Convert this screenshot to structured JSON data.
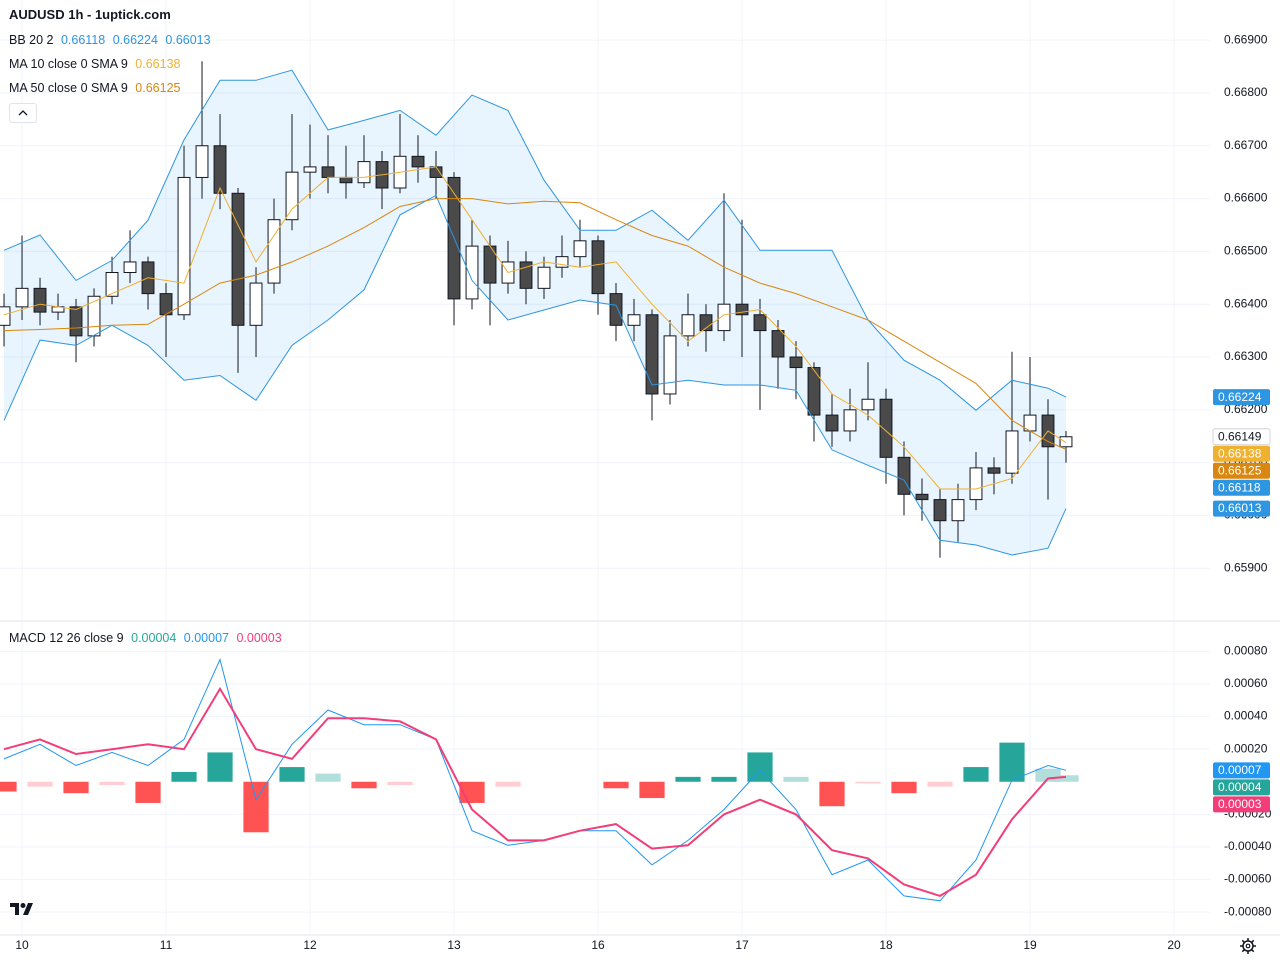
{
  "chart_data": [
    {
      "type": "candlestick",
      "title": "AUDUSD 1h - 1uptick.com",
      "xlim": [
        -3.67,
        198
      ],
      "xticks": [
        {
          "value": 0,
          "label": "10"
        },
        {
          "value": 24,
          "label": "11"
        },
        {
          "value": 48,
          "label": "12"
        },
        {
          "value": 72,
          "label": "13"
        },
        {
          "value": 96,
          "label": "16"
        },
        {
          "value": 120,
          "label": "17"
        },
        {
          "value": 144,
          "label": "18"
        },
        {
          "value": 168,
          "label": "19"
        },
        {
          "value": 192,
          "label": "20"
        }
      ],
      "ylim": [
        0.65802,
        0.66976
      ],
      "yticks": [
        {
          "value": 0.659,
          "label": "0.65900"
        },
        {
          "value": 0.66,
          "label": "0.66000"
        },
        {
          "value": 0.661,
          "label": "0.66100"
        },
        {
          "value": 0.662,
          "label": "0.66200"
        },
        {
          "value": 0.663,
          "label": "0.66300"
        },
        {
          "value": 0.664,
          "label": "0.66400"
        },
        {
          "value": 0.665,
          "label": "0.66500"
        },
        {
          "value": 0.666,
          "label": "0.66600"
        },
        {
          "value": 0.667,
          "label": "0.66700"
        },
        {
          "value": 0.668,
          "label": "0.66800"
        },
        {
          "value": 0.669,
          "label": "0.66900"
        }
      ],
      "grid": true,
      "up_color": "#ffffff",
      "down_color": "#4a4a4a",
      "wick_color": "#131722",
      "candles": [
        [
          -3,
          0.6636,
          0.6642,
          0.6632,
          0.66395
        ],
        [
          0,
          0.66395,
          0.6653,
          0.6637,
          0.6643
        ],
        [
          3,
          0.6643,
          0.6645,
          0.6636,
          0.66385
        ],
        [
          6,
          0.66385,
          0.6642,
          0.6637,
          0.66395
        ],
        [
          9,
          0.66395,
          0.6641,
          0.6629,
          0.6634
        ],
        [
          12,
          0.6634,
          0.6643,
          0.6632,
          0.66415
        ],
        [
          15,
          0.66415,
          0.6649,
          0.664,
          0.6646
        ],
        [
          18,
          0.6646,
          0.6654,
          0.6644,
          0.6648
        ],
        [
          21,
          0.6648,
          0.6649,
          0.6639,
          0.6642
        ],
        [
          24,
          0.6642,
          0.6644,
          0.663,
          0.6638
        ],
        [
          27,
          0.6638,
          0.667,
          0.6637,
          0.6664
        ],
        [
          30,
          0.6664,
          0.6686,
          0.666,
          0.667
        ],
        [
          33,
          0.667,
          0.6676,
          0.6658,
          0.6661
        ],
        [
          36,
          0.6661,
          0.6662,
          0.6627,
          0.6636
        ],
        [
          39,
          0.6636,
          0.6647,
          0.663,
          0.6644
        ],
        [
          42,
          0.6644,
          0.666,
          0.6642,
          0.6656
        ],
        [
          45,
          0.6656,
          0.6676,
          0.6654,
          0.6665
        ],
        [
          48,
          0.6665,
          0.6674,
          0.666,
          0.6666
        ],
        [
          51,
          0.6666,
          0.6672,
          0.6661,
          0.6664
        ],
        [
          54,
          0.6664,
          0.667,
          0.666,
          0.6663
        ],
        [
          57,
          0.6663,
          0.6672,
          0.6662,
          0.6667
        ],
        [
          60,
          0.6667,
          0.6669,
          0.6658,
          0.6662
        ],
        [
          63,
          0.6662,
          0.6676,
          0.6661,
          0.6668
        ],
        [
          66,
          0.6668,
          0.6672,
          0.6663,
          0.6666
        ],
        [
          69,
          0.6666,
          0.6669,
          0.666,
          0.6664
        ],
        [
          72,
          0.6664,
          0.6665,
          0.6636,
          0.6641
        ],
        [
          75,
          0.6641,
          0.6656,
          0.6639,
          0.6651
        ],
        [
          78,
          0.6651,
          0.6653,
          0.6636,
          0.6644
        ],
        [
          81,
          0.6644,
          0.6652,
          0.6642,
          0.6648
        ],
        [
          84,
          0.6648,
          0.665,
          0.664,
          0.6643
        ],
        [
          87,
          0.6643,
          0.6649,
          0.6641,
          0.6647
        ],
        [
          90,
          0.6647,
          0.6653,
          0.6645,
          0.6649
        ],
        [
          93,
          0.6649,
          0.6656,
          0.6647,
          0.6652
        ],
        [
          96,
          0.6652,
          0.6653,
          0.6638,
          0.6642
        ],
        [
          99,
          0.6642,
          0.6644,
          0.6633,
          0.6636
        ],
        [
          102,
          0.6636,
          0.6641,
          0.6633,
          0.6638
        ],
        [
          105,
          0.6638,
          0.6639,
          0.6618,
          0.6623
        ],
        [
          108,
          0.6623,
          0.6637,
          0.6621,
          0.6634
        ],
        [
          111,
          0.6634,
          0.6642,
          0.6632,
          0.6638
        ],
        [
          114,
          0.6638,
          0.664,
          0.6631,
          0.6635
        ],
        [
          117,
          0.6635,
          0.6661,
          0.6633,
          0.664
        ],
        [
          120,
          0.664,
          0.6656,
          0.663,
          0.6638
        ],
        [
          123,
          0.6638,
          0.6641,
          0.662,
          0.6635
        ],
        [
          126,
          0.6635,
          0.6637,
          0.6624,
          0.663
        ],
        [
          129,
          0.663,
          0.6633,
          0.6622,
          0.6628
        ],
        [
          132,
          0.6628,
          0.6629,
          0.6614,
          0.6619
        ],
        [
          135,
          0.6619,
          0.6623,
          0.6613,
          0.6616
        ],
        [
          138,
          0.6616,
          0.6624,
          0.6614,
          0.662
        ],
        [
          141,
          0.662,
          0.6629,
          0.6618,
          0.6622
        ],
        [
          144,
          0.6622,
          0.6624,
          0.6606,
          0.6611
        ],
        [
          147,
          0.6611,
          0.6614,
          0.66,
          0.6604
        ],
        [
          150,
          0.6604,
          0.6607,
          0.6599,
          0.6603
        ],
        [
          153,
          0.6603,
          0.6605,
          0.6592,
          0.6599
        ],
        [
          156,
          0.6599,
          0.6606,
          0.6595,
          0.6603
        ],
        [
          159,
          0.6603,
          0.6612,
          0.6601,
          0.6609
        ],
        [
          162,
          0.6609,
          0.6611,
          0.6604,
          0.6608
        ],
        [
          165,
          0.6608,
          0.6631,
          0.6606,
          0.6616
        ],
        [
          168,
          0.6616,
          0.663,
          0.6614,
          0.6619
        ],
        [
          171,
          0.6619,
          0.6622,
          0.6603,
          0.6613
        ],
        [
          174,
          0.6613,
          0.6616,
          0.661,
          0.66149
        ]
      ],
      "x": [
        -3,
        3,
        9,
        15,
        21,
        27,
        33,
        39,
        45,
        51,
        57,
        63,
        69,
        75,
        81,
        87,
        93,
        99,
        105,
        111,
        117,
        123,
        129,
        135,
        141,
        147,
        153,
        159,
        165,
        171,
        174
      ],
      "indicators": [
        {
          "label": "BB 20 2",
          "color": "#2e95e0",
          "fill": "rgba(33,150,243,0.10)",
          "lines": [
            {
              "values": [
                0.66341,
                0.66432,
                0.66384,
                0.66422,
                0.66441,
                0.66484,
                0.66545,
                0.66521,
                0.66583,
                0.6655,
                0.66588,
                0.66668,
                0.66663,
                0.66621,
                0.66569,
                0.66512,
                0.66474,
                0.66469,
                0.66413,
                0.66389,
                0.66422,
                0.66375,
                0.6637,
                0.66313,
                0.66233,
                0.66181,
                0.66105,
                0.66072,
                0.66091,
                0.6609,
                0.66118
              ],
              "visible": false
            },
            {
              "values": [
                0.66502,
                0.66531,
                0.66445,
                0.66483,
                0.66559,
                0.66711,
                0.66824,
                0.66824,
                0.66843,
                0.6673,
                0.66748,
                0.66767,
                0.6672,
                0.66796,
                0.66767,
                0.66635,
                0.6654,
                0.6654,
                0.66578,
                0.66521,
                0.66597,
                0.66502,
                0.66502,
                0.66502,
                0.6637,
                0.66294,
                0.66256,
                0.66199,
                0.66256,
                0.66241,
                0.66224
              ],
              "visible": true
            },
            {
              "values": [
                0.6618,
                0.66332,
                0.66322,
                0.6636,
                0.66322,
                0.66256,
                0.66265,
                0.66218,
                0.66322,
                0.6637,
                0.66427,
                0.66569,
                0.66606,
                0.66445,
                0.6637,
                0.66389,
                0.66408,
                0.66398,
                0.66247,
                0.66256,
                0.66247,
                0.66247,
                0.66237,
                0.66124,
                0.66095,
                0.66067,
                0.65953,
                0.65944,
                0.65925,
                0.65938,
                0.66013
              ],
              "visible": true
            }
          ]
        },
        {
          "label": "MA 10 close 0 SMA 9",
          "color": "#f0b030",
          "lines": [
            {
              "values": [
                0.6638,
                0.664,
                0.6639,
                0.6642,
                0.6645,
                0.6644,
                0.6662,
                0.6648,
                0.6658,
                0.6664,
                0.6664,
                0.6665,
                0.6666,
                0.6656,
                0.6646,
                0.6648,
                0.6647,
                0.6648,
                0.664,
                0.6633,
                0.6638,
                0.6639,
                0.6632,
                0.6623,
                0.6619,
                0.6613,
                0.6605,
                0.6605,
                0.6607,
                0.6616,
                0.66138
              ],
              "visible": true
            }
          ]
        },
        {
          "label": "MA 50 close 0 SMA 9",
          "color": "#d9870f",
          "lines": [
            {
              "values": [
                0.6635,
                0.66352,
                0.66355,
                0.6636,
                0.66362,
                0.664,
                0.6644,
                0.66455,
                0.6648,
                0.6651,
                0.66545,
                0.66585,
                0.666,
                0.666,
                0.6659,
                0.66595,
                0.66592,
                0.6656,
                0.6653,
                0.6651,
                0.6647,
                0.6644,
                0.6642,
                0.66395,
                0.6637,
                0.6633,
                0.6629,
                0.6625,
                0.6618,
                0.6614,
                0.66125
              ],
              "visible": true
            }
          ]
        }
      ]
    },
    {
      "type": "macd",
      "label": "MACD 12 26 close 9",
      "ylim": [
        -0.00094,
        0.00098
      ],
      "yticks": [
        {
          "value": -0.0008,
          "label": "-0.00080"
        },
        {
          "value": -0.0006,
          "label": "-0.00060"
        },
        {
          "value": -0.0004,
          "label": "-0.00040"
        },
        {
          "value": -0.0002,
          "label": "-0.00020"
        },
        {
          "value": 0.0002,
          "label": "0.00020"
        },
        {
          "value": 0.0004,
          "label": "0.00040"
        },
        {
          "value": 0.0006,
          "label": "0.00060"
        },
        {
          "value": 0.0008,
          "label": "0.00080"
        }
      ],
      "x": [
        -3,
        3,
        9,
        15,
        21,
        27,
        33,
        39,
        45,
        51,
        57,
        63,
        69,
        75,
        81,
        87,
        93,
        99,
        105,
        111,
        117,
        123,
        129,
        135,
        141,
        147,
        153,
        159,
        165,
        171,
        174
      ],
      "histogram": {
        "color": "#26a69a",
        "colors": [
          "#26a69a",
          "#b2dfdb",
          "#ff5252",
          "#ffcdd2"
        ],
        "values": [
          -6e-05,
          -3e-05,
          -7e-05,
          -2e-05,
          -0.00013,
          6e-05,
          0.00018,
          -0.00031,
          9e-05,
          5e-05,
          -4e-05,
          -2e-05,
          0,
          -0.00013,
          -3e-05,
          0,
          0,
          -4e-05,
          -0.0001,
          3e-05,
          3e-05,
          0.00018,
          3e-05,
          -0.00015,
          -1e-05,
          -7e-05,
          -3e-05,
          9e-05,
          0.00024,
          8e-05,
          4e-05
        ]
      },
      "series": [
        {
          "color": "#2196f3",
          "width": 1,
          "values": [
            0.00014,
            0.00023,
            0.0001,
            0.00018,
            0.0001,
            0.00026,
            0.00075,
            -0.00011,
            0.00023,
            0.00044,
            0.00035,
            0.00035,
            0.00026,
            -0.0003,
            -0.00039,
            -0.00036,
            -0.0003,
            -0.0003,
            -0.00051,
            -0.00036,
            -0.00017,
            7e-05,
            -0.00017,
            -0.00057,
            -0.00048,
            -0.0007,
            -0.00073,
            -0.00048,
            1e-05,
            0.0001,
            7e-05
          ]
        },
        {
          "color": "#f23d78",
          "width": 2,
          "values": [
            0.0002,
            0.00026,
            0.00017,
            0.0002,
            0.00023,
            0.0002,
            0.00057,
            0.0002,
            0.00014,
            0.00039,
            0.00039,
            0.00037,
            0.00026,
            -0.00017,
            -0.00036,
            -0.00036,
            -0.0003,
            -0.00026,
            -0.00041,
            -0.00039,
            -0.0002,
            -0.00011,
            -0.0002,
            -0.00042,
            -0.00047,
            -0.00063,
            -0.0007,
            -0.00057,
            -0.00023,
            2e-05,
            3e-05
          ]
        }
      ]
    }
  ]
}
